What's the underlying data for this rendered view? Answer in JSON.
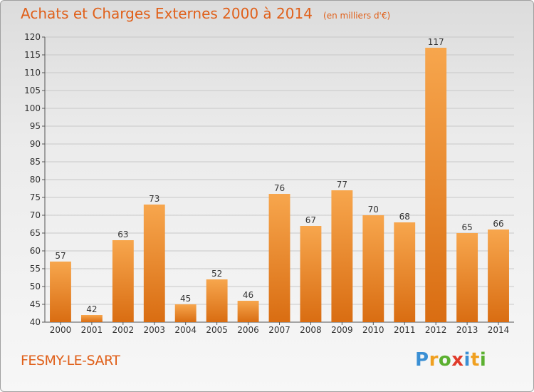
{
  "header": {
    "title": "Achats et Charges Externes 2000 à 2014",
    "unit": "(en milliers d'€)"
  },
  "footer": {
    "commune": "FESMY-LE-SART",
    "logo_letters": [
      "P",
      "r",
      "o",
      "x",
      "i",
      "t",
      "i"
    ],
    "logo_colors": [
      "#3a8fd4",
      "#f0a020",
      "#5bb030",
      "#e03a2a",
      "#3a8fd4",
      "#f0a020",
      "#5bb030"
    ]
  },
  "colors": {
    "bar_light": "#f7a64d",
    "bar_dark": "#d96d12",
    "accent": "#e0601a",
    "grid": "#c8c8c8"
  },
  "chart_data": {
    "type": "bar",
    "categories": [
      "2000",
      "2001",
      "2002",
      "2003",
      "2004",
      "2005",
      "2006",
      "2007",
      "2008",
      "2009",
      "2010",
      "2011",
      "2012",
      "2013",
      "2014"
    ],
    "values": [
      57,
      42,
      63,
      73,
      45,
      52,
      46,
      76,
      67,
      77,
      70,
      68,
      117,
      65,
      66
    ],
    "ylim": [
      40,
      120
    ],
    "yticks": [
      40,
      45,
      50,
      55,
      60,
      65,
      70,
      75,
      80,
      85,
      90,
      95,
      100,
      105,
      110,
      115,
      120
    ],
    "grid": true,
    "xlabel": "",
    "ylabel": ""
  }
}
